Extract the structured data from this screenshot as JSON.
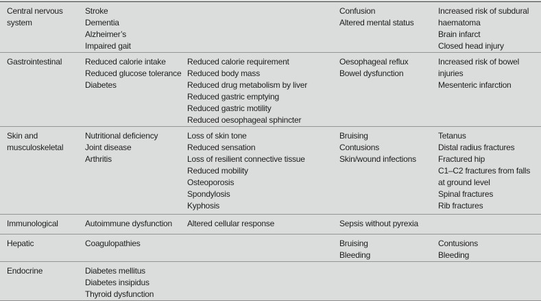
{
  "page": {
    "background_color": "#dbdcdc",
    "text_color": "#1d1d1d",
    "top_border_color": "#424242",
    "row_divider_color": "#949494",
    "bottom_border_color": "#8f8f8f"
  },
  "table": {
    "rows": [
      {
        "system": "Central nervous system",
        "columns": [
          [
            "Stroke",
            "Dementia",
            "Alzheimer’s",
            "Impaired gait"
          ],
          [],
          [
            "Confusion",
            "Altered mental status"
          ],
          [
            "Increased risk of subdural haematoma",
            "Brain infarct",
            "Closed head injury"
          ]
        ]
      },
      {
        "system": "Gastrointestinal",
        "columns": [
          [
            "Reduced calorie intake",
            "Reduced glucose tolerance",
            "Diabetes"
          ],
          [
            "Reduced calorie requirement",
            "Reduced body mass",
            "Reduced drug metabolism by liver",
            "Reduced gastric emptying",
            "Reduced gastric motility",
            "Reduced oesophageal sphincter"
          ],
          [
            "Oesophageal reflux",
            "Bowel dysfunction"
          ],
          [
            "Increased risk of bowel injuries",
            "Mesenteric infarction"
          ]
        ]
      },
      {
        "system": "Skin and musculoskeletal",
        "columns": [
          [
            "Nutritional deficiency",
            "Joint disease",
            "Arthritis"
          ],
          [
            "Loss of skin tone",
            "Reduced sensation",
            "Loss of resilient connective tissue",
            "Reduced mobility",
            "Osteoporosis",
            "Spondylosis",
            "Kyphosis"
          ],
          [
            "Bruising",
            "Contusions",
            "Skin/wound infections"
          ],
          [
            "Tetanus",
            "Distal radius fractures",
            "Fractured hip",
            "C1–C2 fractures from falls at ground level",
            "Spinal fractures",
            "Rib fractures"
          ]
        ]
      },
      {
        "system": "Immunological",
        "columns": [
          [
            "Autoimmune dysfunction"
          ],
          [
            "Altered cellular response"
          ],
          [
            "Sepsis without pyrexia"
          ],
          []
        ]
      },
      {
        "system": "Hepatic",
        "columns": [
          [
            "Coagulopathies"
          ],
          [],
          [
            "Bruising",
            "Bleeding"
          ],
          [
            "Contusions",
            "Bleeding"
          ]
        ]
      },
      {
        "system": "Endocrine",
        "columns": [
          [
            "Diabetes mellitus",
            "Diabetes insipidus",
            "Thyroid dysfunction"
          ],
          [],
          [],
          []
        ]
      }
    ]
  }
}
